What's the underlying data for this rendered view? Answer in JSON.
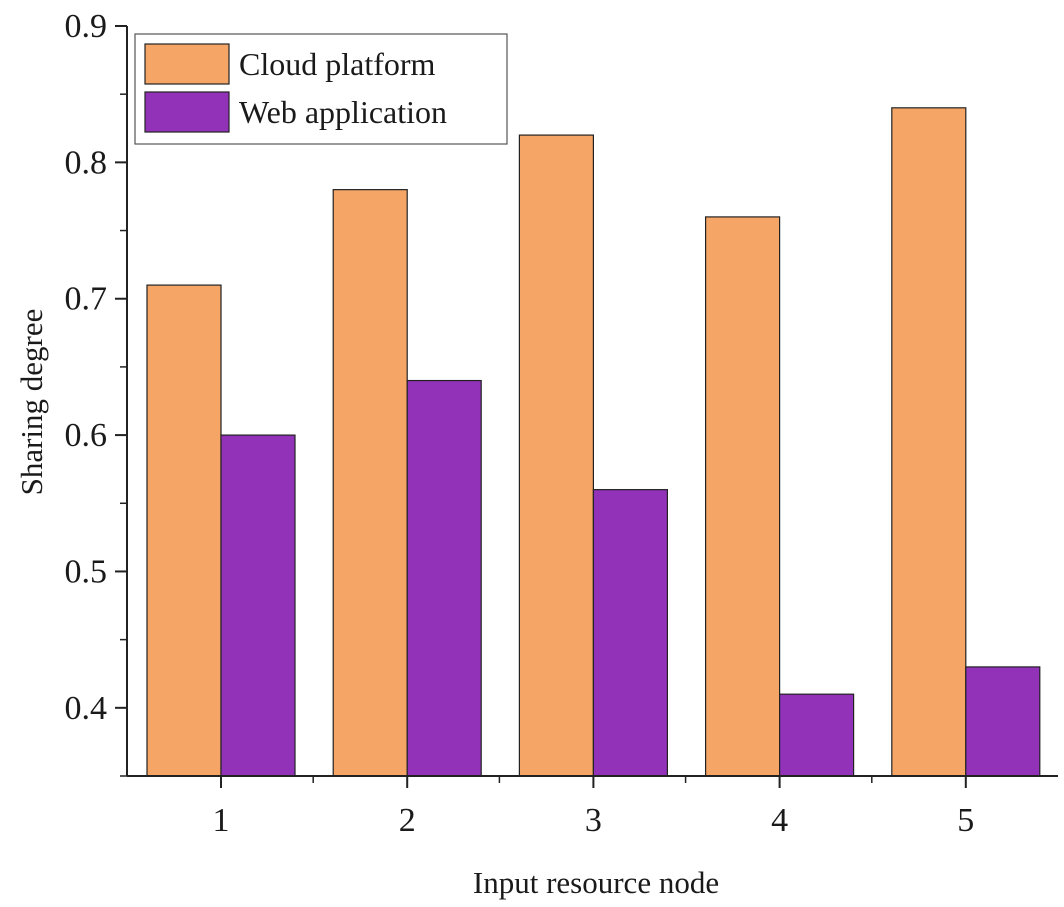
{
  "chart_data": {
    "type": "bar",
    "title": "",
    "xlabel": "Input resource node",
    "ylabel": "Sharing degree",
    "categories": [
      "1",
      "2",
      "3",
      "4",
      "5"
    ],
    "series": [
      {
        "name": "Cloud platform",
        "values": [
          0.71,
          0.78,
          0.82,
          0.76,
          0.84
        ],
        "color": "#F5A666"
      },
      {
        "name": "Web application",
        "values": [
          0.6,
          0.64,
          0.56,
          0.41,
          0.43
        ],
        "color": "#9132B8"
      }
    ],
    "ylim": [
      0.35,
      0.9
    ],
    "yticks": [
      "0.4",
      "0.5",
      "0.6",
      "0.7",
      "0.8",
      "0.9"
    ],
    "grid": false,
    "legend_position": "top-left"
  }
}
